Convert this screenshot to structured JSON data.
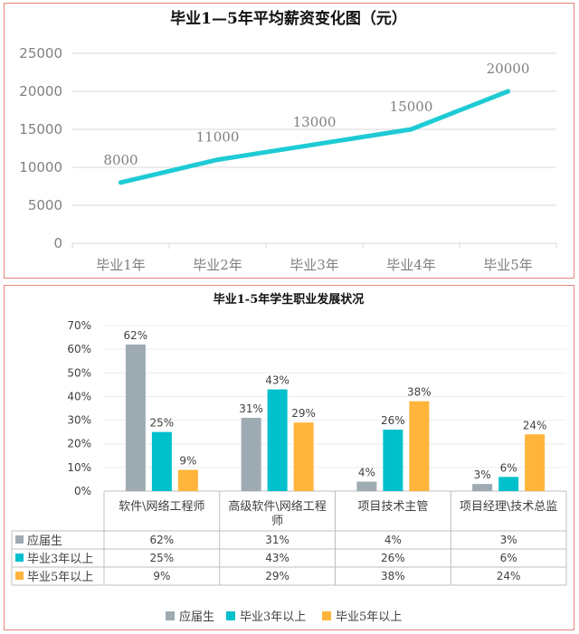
{
  "colors": {
    "line": "#1ecbd4",
    "series1": "#9eabb3",
    "series2": "#00c0cc",
    "series3": "#ffb43c",
    "grid": "#d9d9d9",
    "border": "#e8847a"
  },
  "chart_data": [
    {
      "type": "line",
      "title": "毕业1—5年平均薪资变化图（元）",
      "categories": [
        "毕业1年",
        "毕业2年",
        "毕业3年",
        "毕业4年",
        "毕业5年"
      ],
      "values": [
        8000,
        11000,
        13000,
        15000,
        20000
      ],
      "data_labels": [
        "8000",
        "11000",
        "13000",
        "15000",
        "20000"
      ],
      "yticks": [
        "0",
        "5000",
        "10000",
        "15000",
        "20000",
        "25000"
      ],
      "ylim": [
        0,
        25000
      ],
      "grid": true
    },
    {
      "type": "bar",
      "title": "毕业1-5年学生职业发展状况",
      "categories": [
        "软件\\网络工程师",
        "高级软件\\网络工程师",
        "项目技术主管",
        "项目经理\\技术总监"
      ],
      "yticks": [
        "0%",
        "10%",
        "20%",
        "30%",
        "40%",
        "50%",
        "60%",
        "70%"
      ],
      "ylim": [
        0,
        70
      ],
      "legend_position": "bottom",
      "series": [
        {
          "name": "应届生",
          "values": [
            62,
            31,
            4,
            3
          ],
          "labels": [
            "62%",
            "31%",
            "4%",
            "3%"
          ]
        },
        {
          "name": "毕业3年以上",
          "values": [
            25,
            43,
            26,
            6
          ],
          "labels": [
            "25%",
            "43%",
            "26%",
            "6%"
          ]
        },
        {
          "name": "毕业5年以上",
          "values": [
            9,
            29,
            38,
            24
          ],
          "labels": [
            "9%",
            "29%",
            "38%",
            "24%"
          ]
        }
      ]
    }
  ]
}
